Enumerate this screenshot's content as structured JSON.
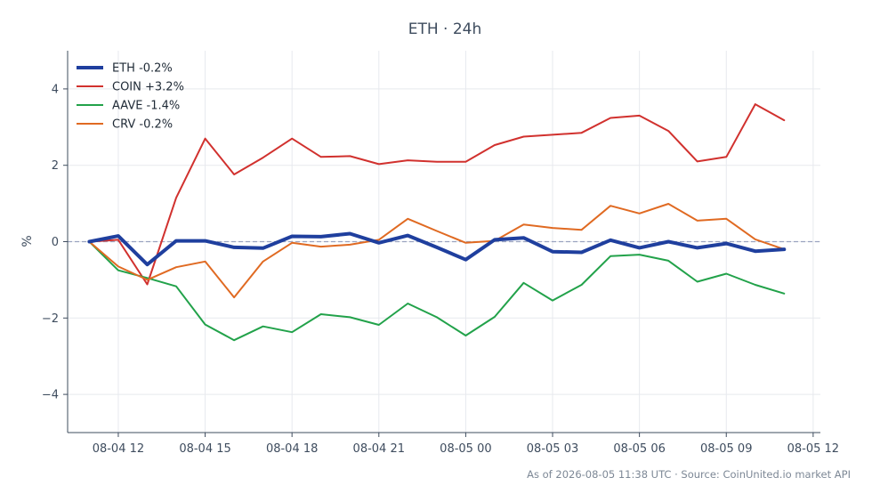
{
  "chart_data": {
    "type": "line",
    "title": "ETH · 24h",
    "xlabel": "",
    "ylabel": "%",
    "ylim": [
      -5,
      5
    ],
    "xlim": [
      "2026-08-04 10:15",
      "2026-08-05 12:15"
    ],
    "yticks": [
      -4,
      -2,
      0,
      2,
      4
    ],
    "yticklabels": [
      "−4",
      "−2",
      "0",
      "2",
      "4"
    ],
    "xticks": [
      "2026-08-04 12:00",
      "2026-08-04 15:00",
      "2026-08-04 18:00",
      "2026-08-04 21:00",
      "2026-08-05 00:00",
      "2026-08-05 03:00",
      "2026-08-05 06:00",
      "2026-08-05 09:00",
      "2026-08-05 12:00"
    ],
    "xticklabels": [
      "08-04 12",
      "08-04 15",
      "08-04 18",
      "08-04 21",
      "08-05 00",
      "08-05 03",
      "08-05 06",
      "08-05 09",
      "08-05 12"
    ],
    "x": [
      "2026-08-04 11:00",
      "2026-08-04 12:00",
      "2026-08-04 13:00",
      "2026-08-04 14:00",
      "2026-08-04 15:00",
      "2026-08-04 16:00",
      "2026-08-04 17:00",
      "2026-08-04 18:00",
      "2026-08-04 19:00",
      "2026-08-04 20:00",
      "2026-08-04 21:00",
      "2026-08-04 22:00",
      "2026-08-04 23:00",
      "2026-08-05 00:00",
      "2026-08-05 01:00",
      "2026-08-05 02:00",
      "2026-08-05 03:00",
      "2026-08-05 04:00",
      "2026-08-05 05:00",
      "2026-08-05 06:00",
      "2026-08-05 07:00",
      "2026-08-05 08:00",
      "2026-08-05 09:00",
      "2026-08-05 10:00",
      "2026-08-05 11:00"
    ],
    "reference_line": 0,
    "grid": true,
    "legend_position": "top-left",
    "series": [
      {
        "name": "ETH -0.2%",
        "color": "#1f3f9e",
        "width": 4,
        "values": [
          0.0,
          0.15,
          -0.6,
          0.02,
          0.02,
          -0.15,
          -0.17,
          0.14,
          0.13,
          0.21,
          -0.03,
          0.16,
          -0.15,
          -0.47,
          0.05,
          0.1,
          -0.26,
          -0.28,
          0.04,
          -0.16,
          0.0,
          -0.16,
          -0.05,
          -0.25,
          -0.2
        ]
      },
      {
        "name": "COIN +3.2%",
        "color": "#d1312e",
        "width": 2,
        "values": [
          0.0,
          0.05,
          -1.12,
          1.15,
          2.7,
          1.76,
          2.2,
          2.7,
          2.22,
          2.24,
          2.03,
          2.13,
          2.09,
          2.09,
          2.53,
          2.75,
          2.8,
          2.85,
          3.24,
          3.3,
          2.9,
          2.1,
          2.22,
          3.6,
          3.18
        ]
      },
      {
        "name": "AAVE -1.4%",
        "color": "#22a24a",
        "width": 2,
        "values": [
          0.0,
          -0.75,
          -0.95,
          -1.17,
          -2.17,
          -2.58,
          -2.22,
          -2.37,
          -1.9,
          -1.98,
          -2.18,
          -1.62,
          -1.98,
          -2.46,
          -1.97,
          -1.08,
          -1.54,
          -1.13,
          -0.38,
          -0.34,
          -0.5,
          -1.05,
          -0.84,
          -1.13,
          -1.36
        ]
      },
      {
        "name": "CRV -0.2%",
        "color": "#e06a22",
        "width": 2,
        "values": [
          0.0,
          -0.65,
          -1.0,
          -0.67,
          -0.52,
          -1.46,
          -0.52,
          -0.03,
          -0.13,
          -0.08,
          0.05,
          0.6,
          0.28,
          -0.03,
          0.02,
          0.45,
          0.36,
          0.31,
          0.94,
          0.74,
          0.99,
          0.55,
          0.6,
          0.06,
          -0.2
        ]
      }
    ]
  },
  "footer": "As of 2026-08-05 11:38 UTC · Source: CoinUnited.io market API"
}
